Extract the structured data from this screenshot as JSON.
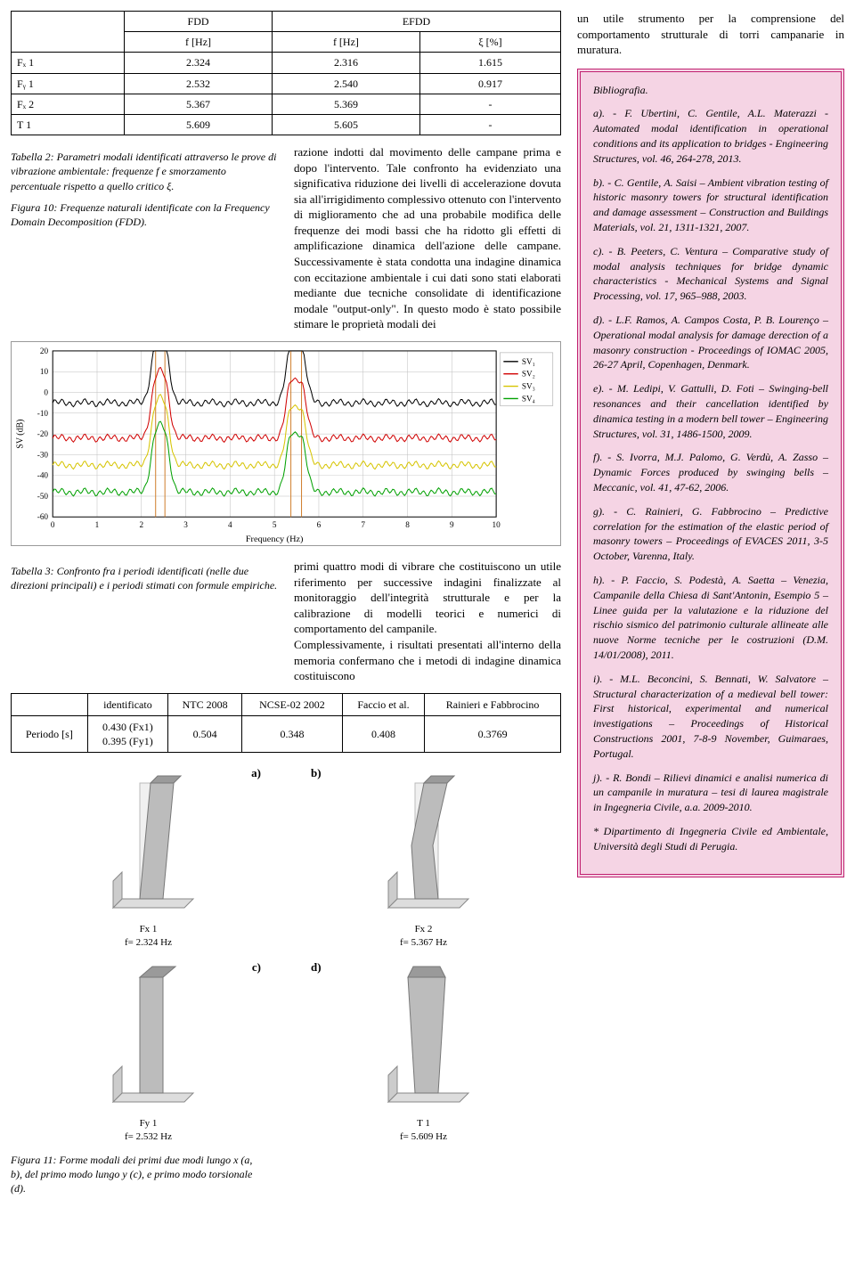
{
  "table1": {
    "head_fdd": "FDD",
    "head_efdd": "EFDD",
    "sub_fhz_a": "f [Hz]",
    "sub_fhz_b": "f [Hz]",
    "sub_xi": "ξ [%]",
    "rows": [
      {
        "label": "Fₓ 1",
        "fdd": "2.324",
        "efdd_f": "2.316",
        "efdd_x": "1.615"
      },
      {
        "label": "Fᵧ 1",
        "fdd": "2.532",
        "efdd_f": "2.540",
        "efdd_x": "0.917"
      },
      {
        "label": "Fₓ 2",
        "fdd": "5.367",
        "efdd_f": "5.369",
        "efdd_x": "-"
      },
      {
        "label": "T 1",
        "fdd": "5.609",
        "efdd_f": "5.605",
        "efdd_x": "-"
      }
    ]
  },
  "cap_tbl2_a": "Tabella 2: Parametri modali identificati attraverso le prove di vibrazione ambientale: frequenze f e smorzamento percentuale rispetto a quello critico ξ.",
  "cap_tbl2_b": "Figura 10: Frequenze naturali identificate con la Frequency Domain Decomposition (FDD).",
  "midtext": "razione indotti dal movimento delle campane prima e dopo l'intervento. Tale confronto ha evidenziato una significativa riduzione dei livelli di accelerazione dovuta sia all'irrigidimento complessivo ottenuto con l'intervento di miglioramento che ad una probabile modifica delle frequenze dei modi bassi che ha ridotto gli effetti di amplificazione dinamica dell'azione delle campane. Successivamente è stata condotta una indagine dinamica con eccitazione ambientale i cui dati sono stati elaborati mediante due tecniche consolidate di identificazione modale \"output-only\". In questo modo è stato possibile stimare le proprietà modali dei",
  "chart": {
    "sv1_color": "#000000",
    "sv2_color": "#d00000",
    "sv3_color": "#d6c400",
    "sv4_color": "#00a000",
    "peak_marker_color": "#d08030",
    "grid_color": "#bfbfbf",
    "axis_color": "#000000",
    "xlabel": "Frequency (Hz)",
    "ylabel": "SV (dB)",
    "xmin": 0,
    "xmax": 10,
    "xtick_step": 1,
    "ymin": -60,
    "ymax": 20,
    "ytick_step": 10,
    "peak_x": [
      2.32,
      2.53,
      5.37,
      5.61
    ],
    "legend": [
      "SV₁",
      "SV₂",
      "SV₃",
      "SV₄"
    ]
  },
  "cap_tbl3": "Tabella 3: Confronto fra i periodi identificati (nelle due direzioni principali) e i periodi stimati con formule empiriche.",
  "midtext2": "primi quattro modi di vibrare che costituiscono un utile riferimento per successive indagini finalizzate al monitoraggio dell'integrità strutturale e per la calibrazione di modelli teorici e numerici di comportamento del campanile.\n    Complessivamente, i risultati presentati all'interno della memoria confermano che i metodi di indagine dinamica costituiscono",
  "table3": {
    "headers": [
      "",
      "identificato",
      "NTC 2008",
      "NCSE-02 2002",
      "Faccio et al.",
      "Rainieri e Fabbrocino"
    ],
    "row_label": "Periodo [s]",
    "ident": "0.430 (Fx1)\n0.395 (Fy1)",
    "ntc": "0.504",
    "ncse": "0.348",
    "faccio": "0.408",
    "rainieri": "0.3769"
  },
  "modes": {
    "a": {
      "letter": "a)",
      "name": "Fx 1",
      "freq": "f= 2.324 Hz"
    },
    "b": {
      "letter": "b)",
      "name": "Fx 2",
      "freq": "f= 5.367 Hz"
    },
    "c": {
      "letter": "c)",
      "name": "Fy 1",
      "freq": "f= 2.532 Hz"
    },
    "d": {
      "letter": "d)",
      "name": "T 1",
      "freq": "f= 5.609 Hz"
    }
  },
  "cap_fig11": "Figura 11: Forme modali dei primi due modi lungo x (a, b), del primo modo lungo y (c), e primo modo torsionale (d).",
  "right_intro": "un utile strumento per la comprensione del comportamento strutturale di torri campanarie in muratura.",
  "bib": {
    "title": "Bibliografia.",
    "a": "a). - F. Ubertini, C. Gentile, A.L. Materazzi - Automated modal identification in operational conditions and its application to bridges - Engineering Structures, vol. 46, 264-278, 2013.",
    "b": "b). - C. Gentile, A. Saisi – Ambient vibration testing of historic masonry towers for structural identification and damage assessment – Construction and Buildings Materials, vol. 21, 1311-1321, 2007.",
    "c": "c). - B. Peeters, C. Ventura – Comparative study of modal analysis techniques for bridge dynamic characteristics - Mechanical Systems and Signal Processing, vol. 17, 965–988, 2003.",
    "d": "d). - L.F. Ramos, A. Campos Costa, P. B. Lourenço – Operational modal analysis for damage derection of a masonry construction - Proceedings of IOMAC 2005, 26-27 April, Copenhagen, Denmark.",
    "e": "e). - M. Ledipi, V. Gattulli, D. Foti – Swinging-bell resonances and their cancellation identified by dinamica testing in a modern bell tower – Engineering Structures, vol. 31, 1486-1500, 2009.",
    "f": "f). - S. Ivorra, M.J. Palomo, G. Verdù, A. Zasso – Dynamic Forces produced by swinging bells – Meccanic, vol. 41, 47-62, 2006.",
    "g": "g). - C. Rainieri, G. Fabbrocino – Predictive correlation for the estimation of the elastic period of masonry towers – Proceedings of EVACES 2011, 3-5 October, Varenna, Italy.",
    "h": "h). - P. Faccio, S. Podestà, A. Saetta – Venezia, Campanile della Chiesa di Sant'Antonin, Esempio 5 – Linee guida per la valutazione e la riduzione del rischio sismico del patrimonio culturale allineate alle nuove Norme tecniche per le costruzioni (D.M. 14/01/2008), 2011.",
    "i": "i). - M.L. Beconcini, S. Bennati, W. Salvatore – Structural characterization of a medieval bell tower: First historical, experimental and numerical investigations – Proceedings of Historical Constructions 2001, 7-8-9 November, Guimaraes, Portugal.",
    "j": "j). - R. Bondi – Rilievi dinamici e analisi numerica di un campanile in muratura – tesi di laurea magistrale in Ingegneria Civile, a.a. 2009-2010.",
    "foot": "* Dipartimento di Ingegneria Civile ed Ambientale, Università degli Studi di Perugia."
  }
}
